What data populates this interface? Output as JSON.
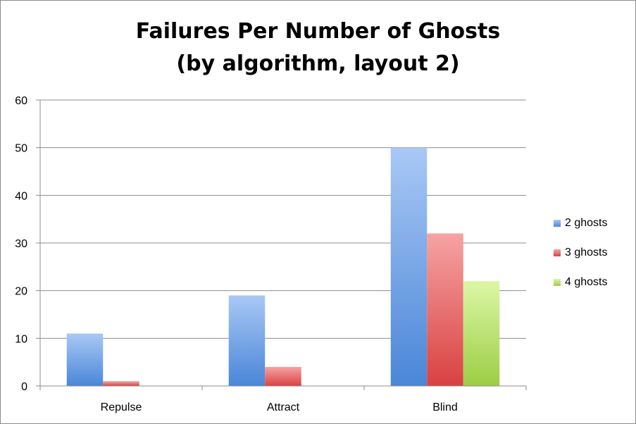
{
  "chart_data": {
    "type": "bar",
    "title_lines": [
      "Failures Per Number of Ghosts",
      "(by algorithm, layout 2)"
    ],
    "categories": [
      "Repulse",
      "Attract",
      "Blind"
    ],
    "series": [
      {
        "name": "2 ghosts",
        "values": [
          11,
          19,
          50
        ],
        "color": "#4a86d8",
        "color_light": "#a9c8f5"
      },
      {
        "name": "3 ghosts",
        "values": [
          1,
          4,
          32
        ],
        "color": "#d94141",
        "color_light": "#f6a3a3"
      },
      {
        "name": "4 ghosts",
        "values": [
          0,
          0,
          22
        ],
        "color": "#9ccd45",
        "color_light": "#dcf7a6"
      }
    ],
    "xlabel": "",
    "ylabel": "",
    "ylim": [
      0,
      60
    ],
    "yticks": [
      0,
      10,
      20,
      30,
      40,
      50,
      60
    ],
    "grid": true,
    "legend_position": "right"
  }
}
